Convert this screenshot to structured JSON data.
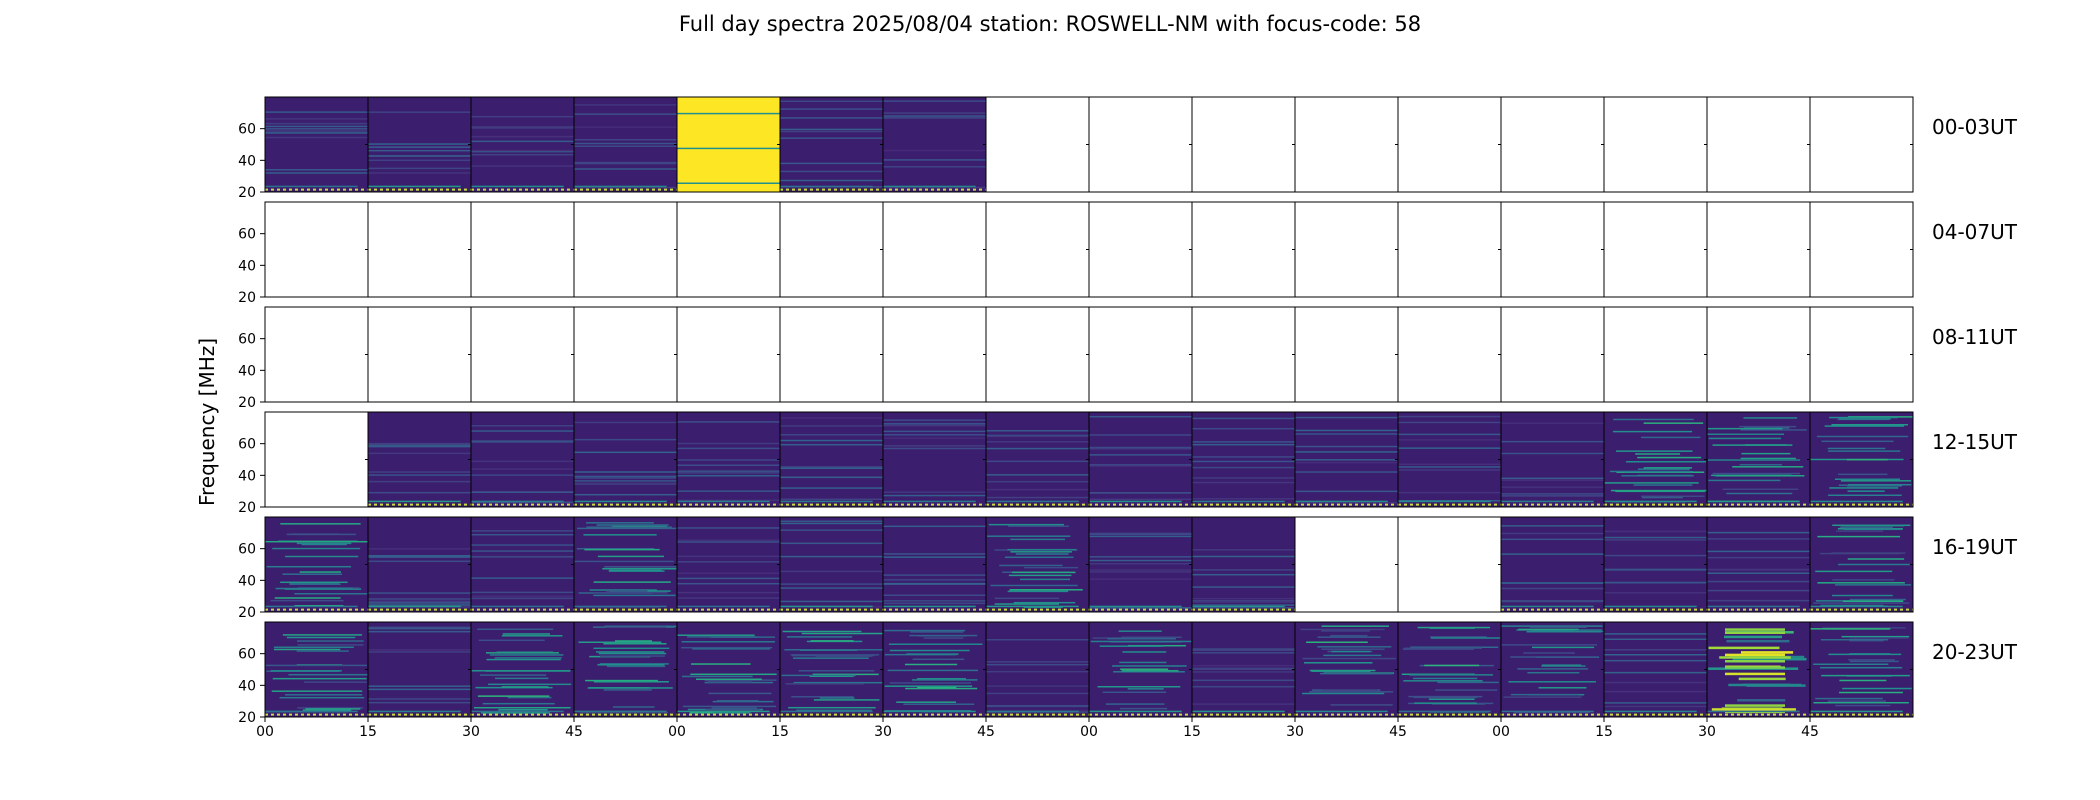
{
  "title": "Full day spectra 2025/08/04 station: ROSWELL-NM with focus-code: 58",
  "chart_data": {
    "type": "heatmap",
    "title": "Full day spectra 2025/08/04 station: ROSWELL-NM with focus-code: 58",
    "ylabel": "Frequency [MHz]",
    "xlabel": "",
    "ylim": [
      20,
      80
    ],
    "y_ticks": [
      20,
      40,
      60
    ],
    "x_ticks": [
      "00",
      "15",
      "30",
      "45",
      "00",
      "15",
      "30",
      "45",
      "00",
      "15",
      "30",
      "45",
      "00",
      "15",
      "30",
      "45"
    ],
    "colormap": "viridis",
    "colors": {
      "low": "#440154",
      "mid": "#21918c",
      "high": "#fde725",
      "bg": "#3b1d73"
    },
    "rows": [
      {
        "label": "00-03UT",
        "panels": [
          "normal",
          "normal",
          "normal",
          "normal",
          "saturated",
          "normal",
          "normal",
          "empty",
          "empty",
          "empty",
          "empty",
          "empty",
          "empty",
          "empty",
          "empty",
          "empty"
        ]
      },
      {
        "label": "04-07UT",
        "panels": [
          "empty",
          "empty",
          "empty",
          "empty",
          "empty",
          "empty",
          "empty",
          "empty",
          "empty",
          "empty",
          "empty",
          "empty",
          "empty",
          "empty",
          "empty",
          "empty"
        ]
      },
      {
        "label": "08-11UT",
        "panels": [
          "empty",
          "empty",
          "empty",
          "empty",
          "empty",
          "empty",
          "empty",
          "empty",
          "empty",
          "empty",
          "empty",
          "empty",
          "empty",
          "empty",
          "empty",
          "empty"
        ]
      },
      {
        "label": "12-15UT",
        "panels": [
          "empty",
          "normal",
          "normal",
          "normal",
          "normal",
          "normal",
          "normal",
          "normal",
          "normal",
          "normal",
          "normal",
          "normal",
          "normal",
          "busy",
          "busy",
          "busy"
        ]
      },
      {
        "label": "16-19UT",
        "panels": [
          "busy",
          "normal",
          "normal",
          "busy",
          "normal",
          "normal",
          "normal",
          "busy",
          "normal",
          "normal",
          "empty",
          "empty",
          "normal",
          "normal",
          "normal",
          "busy"
        ]
      },
      {
        "label": "20-23UT",
        "panels": [
          "busy",
          "normal",
          "busy",
          "busy",
          "busy",
          "busy",
          "busy",
          "normal",
          "busy",
          "normal",
          "busy",
          "busy",
          "busy",
          "normal",
          "strong",
          "busy"
        ]
      }
    ]
  }
}
